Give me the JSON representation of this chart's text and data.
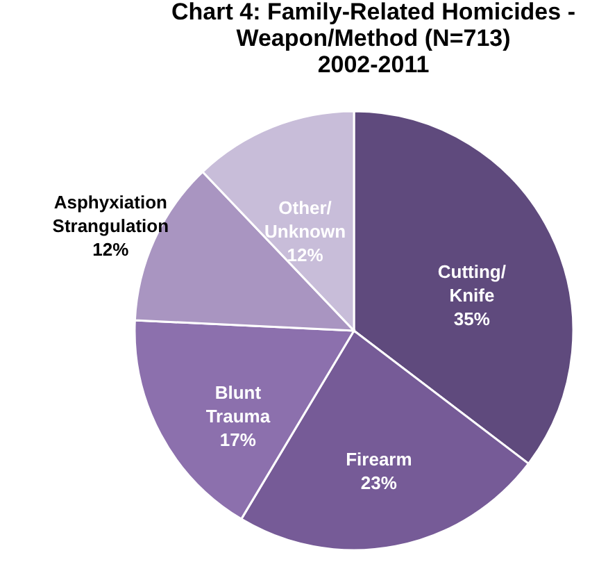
{
  "chart_data": {
    "type": "pie",
    "title": "Chart 4: Family-Related Homicides -\nWeapon/Method (N=713)\n2002-2011",
    "categories": [
      "Cutting/ Knife",
      "Firearm",
      "Blunt Trauma",
      "Asphyxiation Strangulation",
      "Other/ Unknown"
    ],
    "values": [
      35,
      23,
      17,
      12,
      12
    ],
    "value_labels": [
      "35%",
      "23%",
      "17%",
      "12%",
      "12%"
    ],
    "colors": [
      "#5f4a7d",
      "#765b97",
      "#8c70ad",
      "#a995c1",
      "#c8bdd9"
    ],
    "legend": false
  }
}
